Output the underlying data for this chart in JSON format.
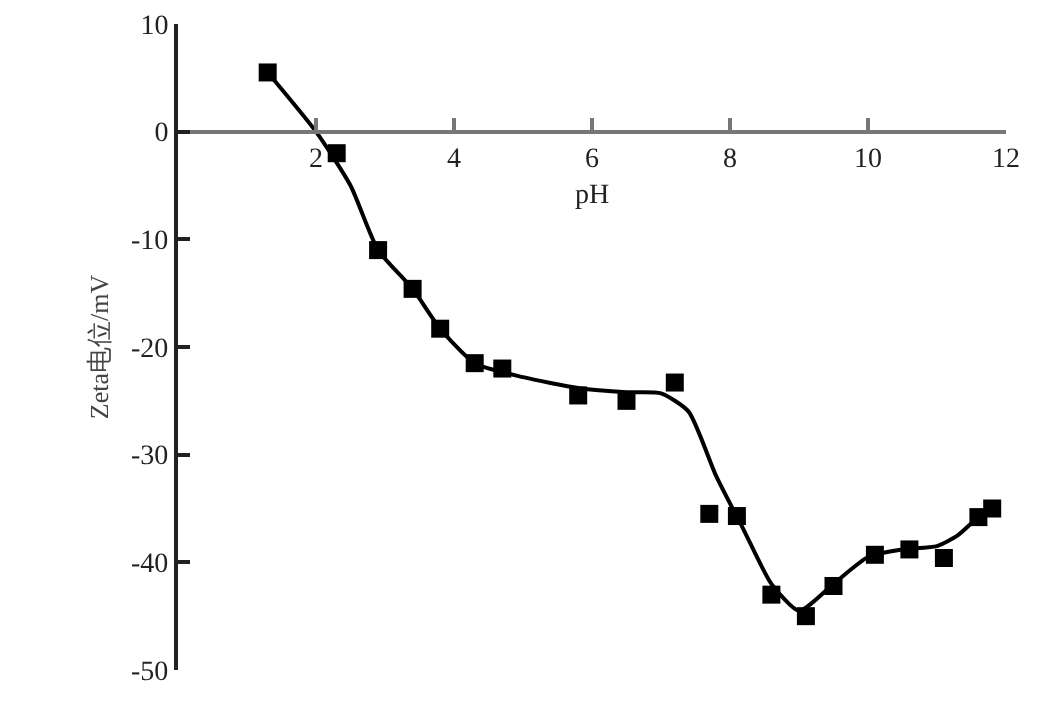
{
  "chart_data": {
    "type": "scatter",
    "xlabel": "pH",
    "ylabel": "Zeta电位/mV",
    "xlim": [
      0,
      12
    ],
    "ylim": [
      -50,
      10
    ],
    "xticks": [
      2,
      4,
      6,
      8,
      10,
      12
    ],
    "yticks": [
      -50,
      -40,
      -30,
      -20,
      -10,
      0,
      10
    ],
    "grid": false,
    "series": [
      {
        "marker": "square",
        "color": "#000000",
        "x": [
          1.3,
          2.3,
          2.9,
          3.4,
          3.8,
          4.3,
          4.7,
          5.8,
          6.5,
          7.2,
          7.7,
          8.1,
          8.6,
          9.1,
          9.5,
          10.1,
          10.6,
          11.1,
          11.6,
          11.8
        ],
        "values": [
          5.5,
          -2,
          -11,
          -14.6,
          -18.3,
          -21.5,
          -22,
          -24.5,
          -25,
          -23.3,
          -35.5,
          -35.7,
          -43,
          -45,
          -42.2,
          -39.3,
          -38.8,
          -39.6,
          -35.8,
          -35
        ]
      },
      {
        "type": "line",
        "marker": "none",
        "line_style": "solid",
        "color": "#000000",
        "x": [
          1.3,
          2.0,
          2.5,
          2.9,
          3.4,
          3.8,
          4.3,
          5.0,
          5.8,
          6.5,
          7.0,
          7.4,
          7.8,
          8.2,
          8.6,
          9.0,
          9.5,
          10.0,
          10.5,
          11.0,
          11.3,
          11.6,
          11.8
        ],
        "values": [
          5.5,
          0,
          -5,
          -11,
          -14.6,
          -18.3,
          -21.5,
          -22.8,
          -23.8,
          -24.2,
          -24.3,
          -26,
          -32,
          -37,
          -42,
          -44.5,
          -42,
          -39.5,
          -38.8,
          -38.5,
          -37.5,
          -35.8,
          -35
        ]
      }
    ]
  }
}
